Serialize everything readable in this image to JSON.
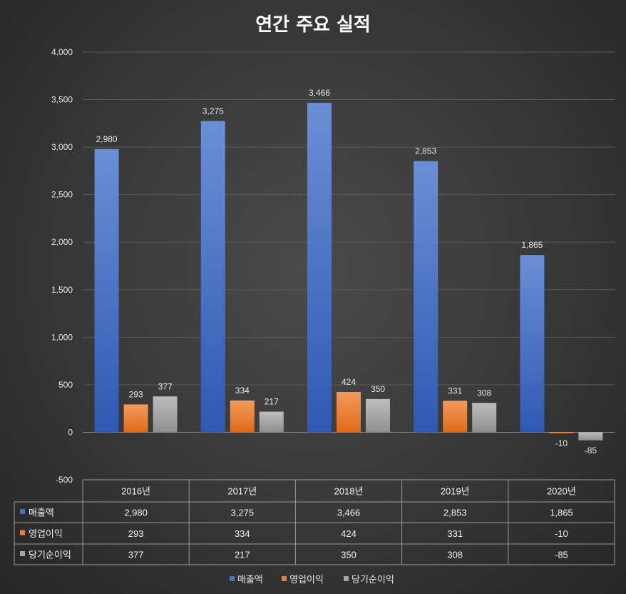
{
  "chart_data": {
    "type": "bar",
    "title": "연간 주요 실적",
    "categories": [
      "2016년",
      "2017년",
      "2018년",
      "2019년",
      "2020년"
    ],
    "series": [
      {
        "name": "매출액",
        "color": "#4472C4",
        "values": [
          2980,
          3275,
          3466,
          2853,
          1865
        ],
        "labels": [
          "2,980",
          "3,275",
          "3,466",
          "2,853",
          "1,865"
        ]
      },
      {
        "name": "영업이익",
        "color": "#ED7D31",
        "values": [
          293,
          334,
          424,
          331,
          -10
        ],
        "labels": [
          "293",
          "334",
          "424",
          "331",
          "-10"
        ]
      },
      {
        "name": "당기순이익",
        "color": "#A5A5A5",
        "values": [
          377,
          217,
          350,
          308,
          -85
        ],
        "labels": [
          "377",
          "217",
          "350",
          "308",
          "-85"
        ]
      }
    ],
    "ylim": [
      -500,
      4000
    ],
    "yticks": [
      -500,
      0,
      500,
      1000,
      1500,
      2000,
      2500,
      3000,
      3500,
      4000
    ],
    "ytick_labels": [
      "-500",
      "0",
      "500",
      "1,000",
      "1,500",
      "2,000",
      "2,500",
      "3,000",
      "3,500",
      "4,000"
    ],
    "grid": true,
    "data_table": true,
    "legend": "bottom"
  }
}
